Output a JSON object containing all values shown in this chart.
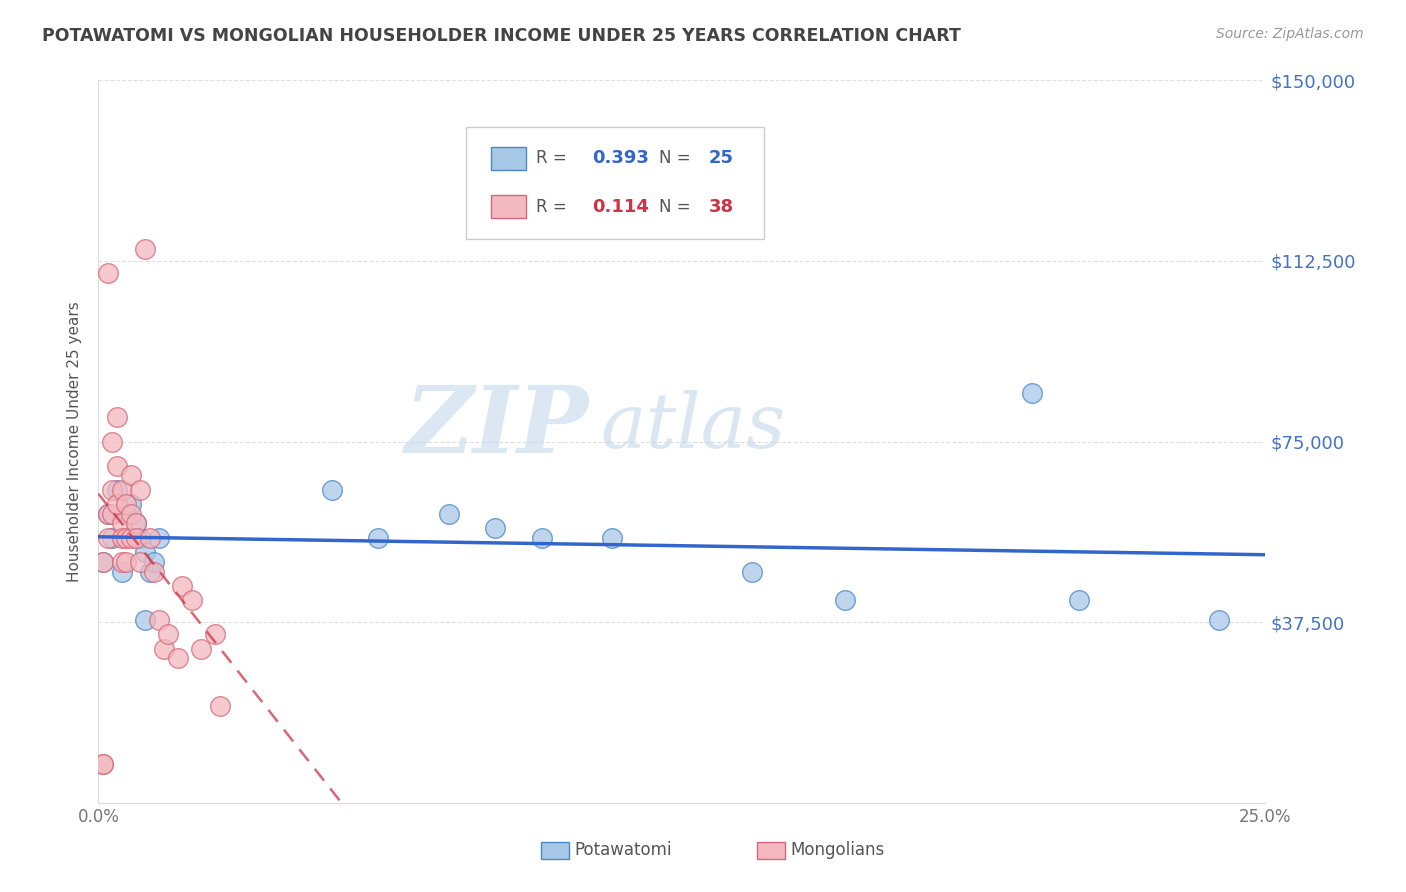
{
  "title": "POTAWATOMI VS MONGOLIAN HOUSEHOLDER INCOME UNDER 25 YEARS CORRELATION CHART",
  "source": "Source: ZipAtlas.com",
  "ylabel": "Householder Income Under 25 years",
  "r_potawatomi": 0.393,
  "n_potawatomi": 25,
  "r_mongolian": 0.114,
  "n_mongolian": 38,
  "xlim": [
    0,
    0.25
  ],
  "ylim": [
    0,
    150000
  ],
  "color_potawatomi_fill": "#a8c8e8",
  "color_potawatomi_edge": "#4a86c8",
  "color_mongolian_fill": "#f4b8c0",
  "color_mongolian_edge": "#d46878",
  "color_trendline_blue": "#3366cc",
  "color_trendline_pink": "#cc3344",
  "color_axis_right": "#4472c4",
  "color_title": "#444444",
  "background_color": "#ffffff",
  "watermark_zip": "ZIP",
  "watermark_atlas": "atlas",
  "potawatomi_x": [
    0.001,
    0.002,
    0.003,
    0.004,
    0.005,
    0.006,
    0.007,
    0.008,
    0.009,
    0.01,
    0.01,
    0.011,
    0.012,
    0.013,
    0.05,
    0.06,
    0.075,
    0.085,
    0.095,
    0.11,
    0.14,
    0.16,
    0.2,
    0.21,
    0.24
  ],
  "potawatomi_y": [
    50000,
    60000,
    55000,
    65000,
    48000,
    60000,
    62000,
    58000,
    55000,
    52000,
    38000,
    48000,
    50000,
    55000,
    65000,
    55000,
    60000,
    57000,
    55000,
    55000,
    48000,
    42000,
    85000,
    42000,
    38000
  ],
  "mongolian_x": [
    0.001,
    0.001,
    0.001,
    0.002,
    0.002,
    0.002,
    0.003,
    0.003,
    0.003,
    0.004,
    0.004,
    0.004,
    0.005,
    0.005,
    0.005,
    0.005,
    0.006,
    0.006,
    0.006,
    0.007,
    0.007,
    0.007,
    0.008,
    0.008,
    0.009,
    0.009,
    0.01,
    0.011,
    0.012,
    0.013,
    0.014,
    0.015,
    0.017,
    0.018,
    0.02,
    0.022,
    0.025,
    0.026
  ],
  "mongolian_y": [
    50000,
    8000,
    8000,
    60000,
    55000,
    110000,
    65000,
    60000,
    75000,
    80000,
    62000,
    70000,
    58000,
    65000,
    50000,
    55000,
    62000,
    50000,
    55000,
    68000,
    60000,
    55000,
    58000,
    55000,
    65000,
    50000,
    115000,
    55000,
    48000,
    38000,
    32000,
    35000,
    30000,
    45000,
    42000,
    32000,
    35000,
    20000
  ]
}
